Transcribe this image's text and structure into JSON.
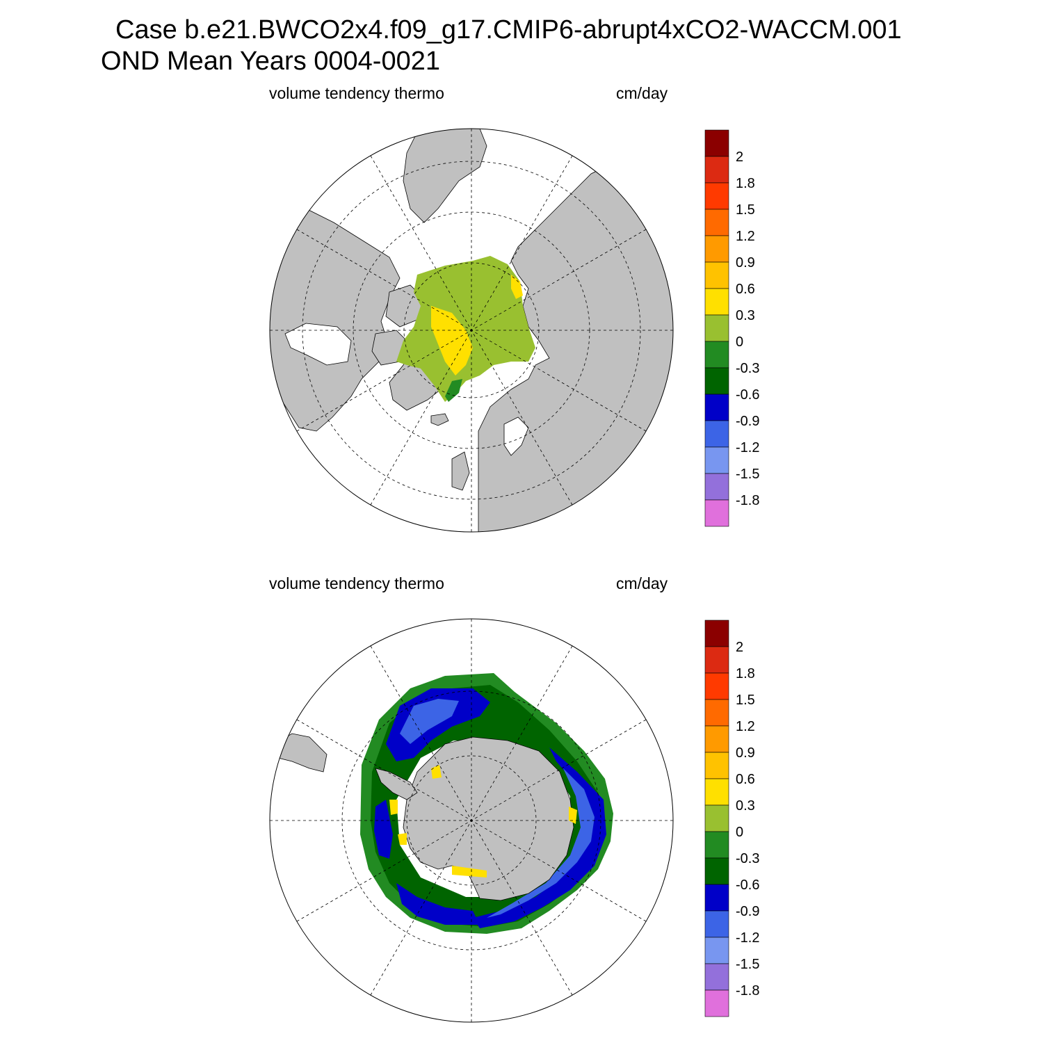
{
  "title": {
    "line1": "Case b.e21.BWCO2x4.f09_g17.CMIP6-abrupt4xCO2-WACCM.001",
    "line2": "OND Mean   Years 0004-0021"
  },
  "panels": [
    {
      "id": "arctic",
      "hemisphere": "north",
      "left_label": "volume tendency thermo",
      "right_label": "cm/day"
    },
    {
      "id": "antarctic",
      "hemisphere": "south",
      "left_label": "volume tendency thermo",
      "right_label": "cm/day"
    }
  ],
  "colorbar": {
    "labels": [
      "2",
      "1.8",
      "1.5",
      "1.2",
      "0.9",
      "0.6",
      "0.3",
      "0",
      "-0.3",
      "-0.6",
      "-0.9",
      "-1.2",
      "-1.5",
      "-1.8"
    ],
    "colors": [
      "#8b0000",
      "#dc2a12",
      "#ff3a00",
      "#ff6a00",
      "#ff9a00",
      "#ffc200",
      "#ffe000",
      "#99c030",
      "#228b22",
      "#006400",
      "#0000c8",
      "#3c64e6",
      "#7896f0",
      "#9370db",
      "#e070dc"
    ]
  },
  "colors": {
    "land": "#c0c0c0",
    "ocean": "#ffffff",
    "frame": "#000000"
  }
}
